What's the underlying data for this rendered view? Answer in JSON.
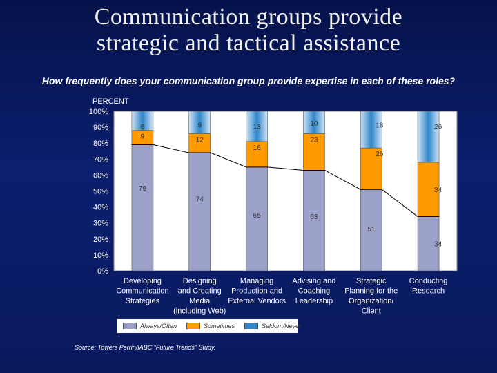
{
  "slide": {
    "title_line1": "Communication groups provide",
    "title_line2": "strategic and tactical assistance",
    "subtitle": "How frequently does your communication group provide expertise in each of these roles?",
    "source": "Source: Towers Perrin/IABC \"Future Trends\" Study."
  },
  "colors": {
    "always_often": "#9ca1c9",
    "sometimes": "#ff9900",
    "seldom_never": "#2f86c8",
    "plot_bg": "#ffffff",
    "trend_line": "#000000"
  },
  "chart_data": {
    "type": "bar",
    "stacked": true,
    "ylabel": "PERCENT",
    "ylim": [
      0,
      100
    ],
    "yticks": [
      "0%",
      "10%",
      "20%",
      "30%",
      "40%",
      "50%",
      "60%",
      "70%",
      "80%",
      "90%",
      "100%"
    ],
    "categories": [
      [
        "Developing",
        "Communication",
        "Strategies"
      ],
      [
        "Designing",
        "and Creating",
        "Media",
        "(including Web)"
      ],
      [
        "Managing",
        "Production and",
        "External Vendors"
      ],
      [
        "Advising and",
        "Coaching",
        "Leadership"
      ],
      [
        "Strategic",
        "Planning for the",
        "Organization/",
        "Client"
      ],
      [
        "Conducting",
        "Research"
      ]
    ],
    "series": [
      {
        "name": "Always/Often",
        "values": [
          79,
          74,
          65,
          63,
          51,
          34
        ]
      },
      {
        "name": "Sometimes",
        "values": [
          9,
          12,
          16,
          23,
          26,
          34
        ]
      },
      {
        "name": "Seldom/Never",
        "values": [
          6,
          9,
          13,
          10,
          18,
          26
        ]
      }
    ],
    "trend_line_on": "Always/Often",
    "legend": [
      "Always/Often",
      "Sometimes",
      "Seldom/Never"
    ]
  }
}
